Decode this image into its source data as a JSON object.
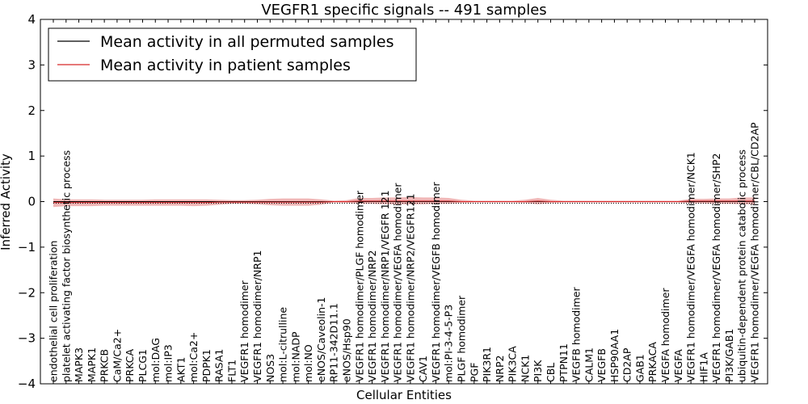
{
  "chart_data": {
    "type": "line",
    "title": "VEGFR1 specific signals -- 491 samples",
    "xlabel": "Cellular Entities",
    "ylabel": "Inferred Activity",
    "ylim": [
      -4,
      4
    ],
    "yticks": [
      "−4",
      "−3",
      "−2",
      "−1",
      "0",
      "1",
      "2",
      "3",
      "4"
    ],
    "grid": false,
    "legend_position": "top-left",
    "colors": {
      "permuted": "#000000",
      "patient": "#d62728",
      "band": "#e06060"
    },
    "categories": [
      "endothelial cell proliferation",
      "platelet activating factor biosynthetic process",
      "MAPK3",
      "MAPK1",
      "PRKCB",
      "CaM/Ca2+",
      "PRKCA",
      "PLCG1",
      "mol:DAG",
      "mol:IP3",
      "AKT1",
      "mol:Ca2+",
      "PDPK1",
      "RASA1",
      "FLT1",
      "VEGFR1 homodimer",
      "VEGFR1 homodimer/NRP1",
      "NOS3",
      "mol:L-citrulline",
      "mol:NADP",
      "mol:NO",
      "eNOS/Caveolin-1",
      "RP11-342D11.1",
      "eNOS/Hsp90",
      "VEGFR1 homodimer/PLGF homodimer",
      "VEGFR1 homodimer/NRP2",
      "VEGFR1 homodimer/NRP1/VEGFR 121",
      "VEGFR1 homodimer/VEGFA homodimer",
      "VEGFR1 homodimer/NRP2/VEGFR121",
      "CAV1",
      "VEGFR1 homodimer/VEGFB homodimer",
      "mol:PI-3-4-5-P3",
      "PLGF homodimer",
      "PGF",
      "PIK3R1",
      "NRP2",
      "PIK3CA",
      "NCK1",
      "PI3K",
      "CBL",
      "PTPN11",
      "VEGFB homodimer",
      "CALM1",
      "VEGFB",
      "HSP90AA1",
      "CD2AP",
      "GAB1",
      "PRKACA",
      "VEGFA homodimer",
      "VEGFA",
      "VEGFR1 homodimer/VEGFA homodimer/NCK1",
      "HIF1A",
      "VEGFR1 homodimer/VEGFA homodimer/SHP2",
      "PI3K/GAB1",
      "ubiquitin-dependent protein catabolic process",
      "VEGFR1 homodimer/VEGFA homodimer/CBL/CD2AP"
    ],
    "series": [
      {
        "name": "Mean activity in all permuted samples",
        "values": [
          0,
          0,
          0,
          0,
          0,
          0,
          0,
          0,
          0,
          0,
          0,
          0,
          0,
          0,
          0,
          0,
          0,
          0,
          0,
          0,
          0,
          0,
          0,
          0,
          0,
          0,
          0,
          0,
          0,
          0,
          0,
          0,
          0,
          0,
          0,
          0,
          0,
          0,
          0,
          0,
          0,
          0,
          0,
          0,
          0,
          0,
          0,
          0,
          0,
          0,
          0,
          0,
          0,
          0,
          0,
          0
        ]
      },
      {
        "name": "Mean activity in patient samples",
        "values": [
          -0.02,
          -0.02,
          -0.02,
          -0.02,
          -0.02,
          -0.02,
          -0.02,
          -0.02,
          -0.02,
          -0.02,
          -0.02,
          -0.02,
          -0.02,
          -0.01,
          -0.01,
          -0.01,
          -0.01,
          -0.01,
          -0.01,
          -0.01,
          -0.01,
          -0.01,
          0.0,
          0.0,
          0.01,
          0.01,
          0.01,
          0.01,
          0.01,
          0.01,
          0.01,
          0.01,
          0.0,
          0.0,
          0.0,
          0.0,
          0.0,
          0.0,
          0.01,
          0.0,
          0.0,
          0.0,
          0.0,
          0.0,
          0.0,
          0.0,
          0.0,
          0.0,
          0.0,
          0.0,
          0.01,
          0.01,
          0.01,
          0.01,
          0.01,
          0.01
        ],
        "lower": [
          -0.12,
          -0.1,
          -0.1,
          -0.1,
          -0.09,
          -0.09,
          -0.09,
          -0.09,
          -0.09,
          -0.09,
          -0.09,
          -0.1,
          -0.09,
          -0.07,
          -0.05,
          -0.05,
          -0.06,
          -0.08,
          -0.09,
          -0.09,
          -0.09,
          -0.07,
          -0.02,
          -0.03,
          -0.05,
          -0.05,
          -0.06,
          -0.06,
          -0.06,
          -0.06,
          -0.05,
          -0.05,
          -0.03,
          -0.02,
          -0.02,
          -0.02,
          -0.02,
          -0.03,
          -0.06,
          -0.03,
          -0.02,
          -0.02,
          -0.02,
          -0.02,
          -0.02,
          -0.02,
          -0.02,
          -0.02,
          -0.02,
          -0.02,
          -0.04,
          -0.04,
          -0.05,
          -0.05,
          -0.06,
          -0.06
        ],
        "upper": [
          0.07,
          0.05,
          0.05,
          0.05,
          0.04,
          0.04,
          0.04,
          0.04,
          0.05,
          0.05,
          0.05,
          0.05,
          0.05,
          0.04,
          0.03,
          0.03,
          0.04,
          0.06,
          0.07,
          0.07,
          0.07,
          0.05,
          0.02,
          0.03,
          0.08,
          0.08,
          0.09,
          0.09,
          0.1,
          0.09,
          0.09,
          0.08,
          0.04,
          0.02,
          0.02,
          0.02,
          0.02,
          0.04,
          0.08,
          0.04,
          0.02,
          0.02,
          0.02,
          0.02,
          0.02,
          0.02,
          0.02,
          0.02,
          0.02,
          0.02,
          0.06,
          0.06,
          0.07,
          0.07,
          0.09,
          0.09
        ]
      }
    ]
  }
}
